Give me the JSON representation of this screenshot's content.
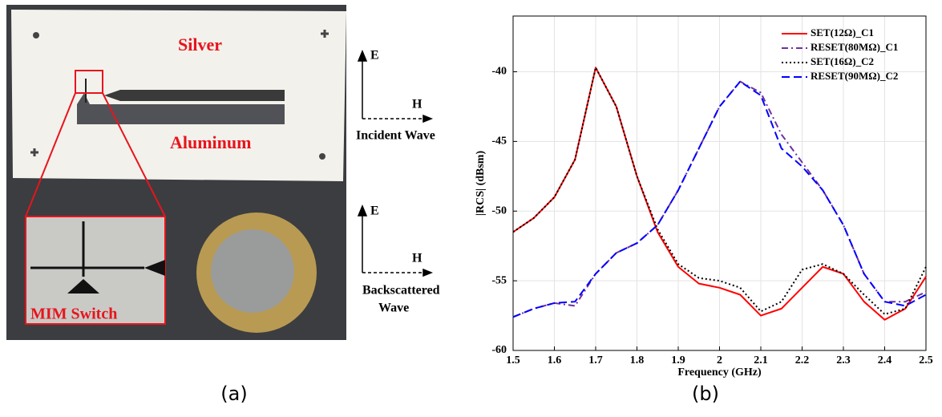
{
  "photo": {
    "labels": [
      "Silver",
      "Aluminum",
      "MIM Switch"
    ],
    "incident": {
      "e": "E",
      "h": "H",
      "caption": "Incident Wave"
    },
    "backscattered": {
      "e": "E",
      "h": "H",
      "caption": [
        "Backscattered",
        "Wave"
      ]
    }
  },
  "captions": [
    "(a)",
    "(b)"
  ],
  "chart_data": {
    "type": "line",
    "x_label": "Frequency (GHz)",
    "y_label": "|RCS| (dBsm)",
    "x": [
      1.5,
      1.55,
      1.6,
      1.65,
      1.7,
      1.75,
      1.8,
      1.85,
      1.9,
      1.95,
      2.0,
      2.05,
      2.1,
      2.15,
      2.2,
      2.25,
      2.3,
      2.35,
      2.4,
      2.45,
      2.5
    ],
    "series": [
      {
        "name": "SET(12Ω)_C1",
        "color": "#ff0000",
        "dash": "solid",
        "values": [
          -51.5,
          -50.5,
          -49,
          -46.3,
          -39.7,
          -42.5,
          -47.5,
          -51.5,
          -54,
          -55.2,
          -55.5,
          -56,
          -57.5,
          -57,
          -55.5,
          -54,
          -54.5,
          -56.5,
          -57.8,
          -57,
          -54.7
        ]
      },
      {
        "name": "RESET(80MΩ)_C1",
        "color": "#7030a0",
        "dash": "dashdot",
        "values": [
          -57.6,
          -57,
          -56.6,
          -56.8,
          -54.5,
          -53,
          -52.3,
          -51,
          -48.5,
          -45.5,
          -42.5,
          -40.7,
          -41.5,
          -44.5,
          -46.5,
          -48.5,
          -51,
          -54.5,
          -56.5,
          -56.5,
          -55.8
        ]
      },
      {
        "name": "SET(16Ω)_C2",
        "color": "#000000",
        "dash": "dotted",
        "values": [
          -51.5,
          -50.5,
          -49,
          -46.3,
          -39.7,
          -42.5,
          -47.5,
          -51.3,
          -53.8,
          -54.8,
          -55,
          -55.5,
          -57.2,
          -56.5,
          -54.2,
          -53.8,
          -54.5,
          -56,
          -57.4,
          -57,
          -54
        ]
      },
      {
        "name": "RESET(90MΩ)_C2",
        "color": "#0000ff",
        "dash": "dashed",
        "values": [
          -57.6,
          -57,
          -56.6,
          -56.5,
          -54.5,
          -53,
          -52.3,
          -51,
          -48.5,
          -45.5,
          -42.5,
          -40.7,
          -41.7,
          -45.5,
          -46.8,
          -48.5,
          -51,
          -54.5,
          -56.5,
          -56.8,
          -56
        ]
      }
    ],
    "xlim": [
      1.5,
      2.5
    ],
    "xticks": [
      1.5,
      1.6,
      1.7,
      1.8,
      1.9,
      2,
      2.1,
      2.2,
      2.3,
      2.4,
      2.5
    ],
    "ylim": [
      -60,
      -36
    ],
    "yticks": [
      -60,
      -55,
      -50,
      -45,
      -40
    ],
    "grid": true,
    "legend": "top-right"
  }
}
